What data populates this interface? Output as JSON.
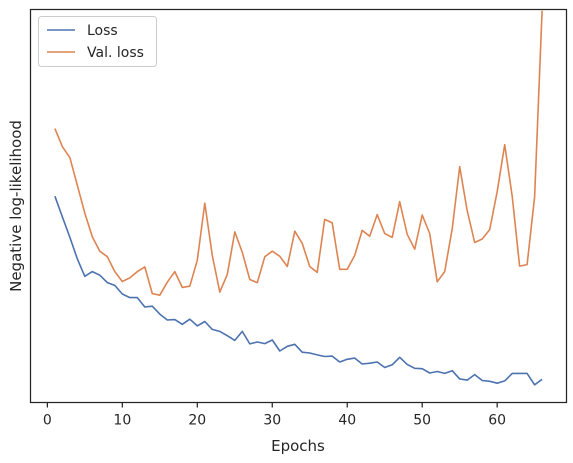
{
  "chart_data": {
    "type": "line",
    "xlabel": "Epochs",
    "ylabel": "Negative log-likelihood",
    "xlim": [
      -2.25,
      69.25
    ],
    "ylim": [
      0,
      100
    ],
    "xticks": [
      0,
      10,
      20,
      30,
      40,
      50,
      60
    ],
    "y_ticks_labeled": false,
    "grid": false,
    "legend": "top-left",
    "series": [
      {
        "name": "Loss",
        "color": "#4c72b0",
        "x": [
          1,
          2,
          3,
          4,
          5,
          6,
          7,
          8,
          9,
          10,
          11,
          12,
          13,
          14,
          15,
          16,
          17,
          18,
          19,
          20,
          21,
          22,
          23,
          24,
          25,
          26,
          27,
          28,
          29,
          30,
          31,
          32,
          33,
          34,
          35,
          36,
          37,
          38,
          39,
          40,
          41,
          42,
          43,
          44,
          45,
          46,
          47,
          48,
          49,
          50,
          51,
          52,
          53,
          54,
          55,
          56,
          57,
          58,
          59,
          60,
          61,
          62,
          63,
          64,
          65,
          66
        ],
        "values": [
          52.5,
          47.2,
          42.0,
          36.5,
          32.1,
          33.3,
          32.4,
          30.5,
          29.8,
          27.6,
          26.7,
          26.7,
          24.3,
          24.5,
          22.5,
          21.0,
          21.1,
          19.9,
          21.2,
          19.5,
          20.6,
          18.6,
          18.1,
          17.0,
          15.8,
          18.1,
          14.9,
          15.4,
          15.0,
          15.9,
          13.1,
          14.3,
          14.8,
          12.8,
          12.6,
          12.1,
          11.7,
          11.8,
          10.3,
          11.0,
          11.3,
          9.8,
          10.0,
          10.3,
          8.9,
          9.6,
          11.5,
          9.7,
          8.7,
          8.6,
          7.5,
          7.9,
          7.4,
          8.1,
          6.0,
          5.7,
          7.1,
          5.6,
          5.4,
          4.9,
          5.5,
          7.4,
          7.4,
          7.4,
          4.5,
          5.9
        ]
      },
      {
        "name": "Val. loss",
        "color": "#dd8452",
        "x": [
          1,
          2,
          3,
          4,
          5,
          6,
          7,
          8,
          9,
          10,
          11,
          12,
          13,
          14,
          15,
          16,
          17,
          18,
          19,
          20,
          21,
          22,
          23,
          24,
          25,
          26,
          27,
          28,
          29,
          30,
          31,
          32,
          33,
          34,
          35,
          36,
          37,
          38,
          39,
          40,
          41,
          42,
          43,
          44,
          45,
          46,
          47,
          48,
          49,
          50,
          51,
          52,
          53,
          54,
          55,
          56,
          57,
          58,
          59,
          60,
          61,
          62,
          63,
          64,
          65,
          66
        ],
        "values": [
          69.7,
          65.1,
          62.3,
          55.2,
          48.2,
          42.2,
          38.5,
          37.1,
          33.3,
          30.8,
          31.7,
          33.3,
          34.5,
          27.7,
          27.3,
          30.6,
          33.3,
          29.3,
          29.6,
          36.2,
          50.7,
          37.4,
          28.1,
          32.6,
          43.4,
          38.2,
          31.3,
          30.5,
          37.1,
          38.5,
          37.2,
          34.6,
          43.6,
          40.5,
          34.6,
          33.1,
          46.6,
          45.7,
          33.9,
          33.9,
          37.4,
          43.8,
          42.3,
          47.8,
          43.0,
          42.0,
          51.1,
          42.8,
          39.0,
          47.7,
          43.0,
          30.7,
          33.3,
          44.2,
          60.0,
          48.8,
          40.7,
          41.6,
          44.0,
          53.7,
          65.6,
          52.5,
          34.7,
          35.1,
          52.3,
          99.7
        ]
      }
    ]
  }
}
